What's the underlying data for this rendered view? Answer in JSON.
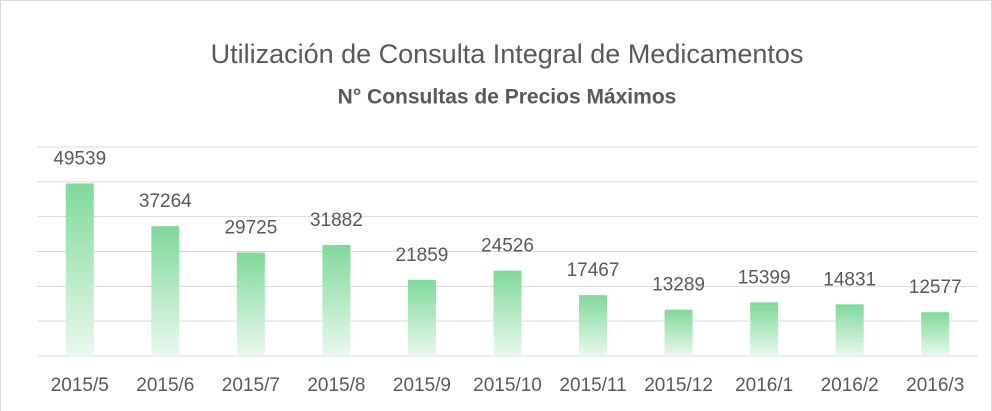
{
  "chart_data": {
    "type": "bar",
    "title": "Utilización de Consulta Integral de Medicamentos",
    "subtitle": "N° Consultas de Precios Máximos",
    "categories": [
      "2015/5",
      "2015/6",
      "2015/7",
      "2015/8",
      "2015/9",
      "2015/10",
      "2015/11",
      "2015/12",
      "2016/1",
      "2016/2",
      "2016/3"
    ],
    "values": [
      49539,
      37264,
      29725,
      31882,
      21859,
      24526,
      17467,
      13289,
      15399,
      14831,
      12577
    ],
    "color": "#7fd99a",
    "ylim": [
      0,
      60000
    ],
    "yticks": [
      0,
      10000,
      20000,
      30000,
      40000,
      50000,
      60000
    ],
    "grid": true
  }
}
